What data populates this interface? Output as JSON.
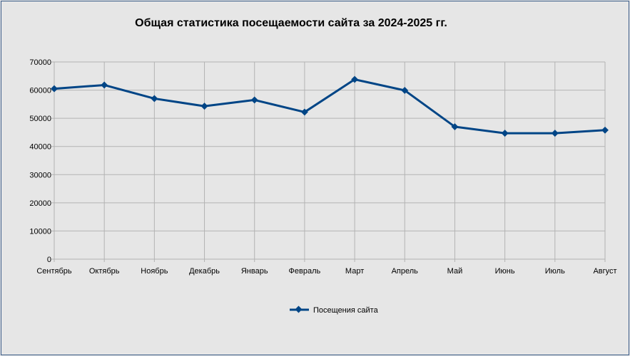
{
  "chart_data": {
    "type": "line",
    "title": "Общая статистика посещаемости сайта за 2024-2025 гг.",
    "xlabel": "",
    "ylabel": "",
    "categories": [
      "Сентябрь",
      "Октябрь",
      "Ноябрь",
      "Декабрь",
      "Январь",
      "Февраль",
      "Март",
      "Апрель",
      "Май",
      "Июнь",
      "Июль",
      "Август"
    ],
    "series": [
      {
        "name": "Посещения сайта",
        "color": "#004586",
        "marker": "diamond",
        "values": [
          60500,
          61800,
          57000,
          54300,
          56500,
          52200,
          63800,
          59900,
          47000,
          44700,
          44700,
          45800
        ]
      }
    ],
    "ylim": [
      0,
      70000
    ],
    "yticks": [
      0,
      10000,
      20000,
      30000,
      40000,
      50000,
      60000,
      70000
    ],
    "grid": true,
    "legend_position": "bottom-center"
  }
}
